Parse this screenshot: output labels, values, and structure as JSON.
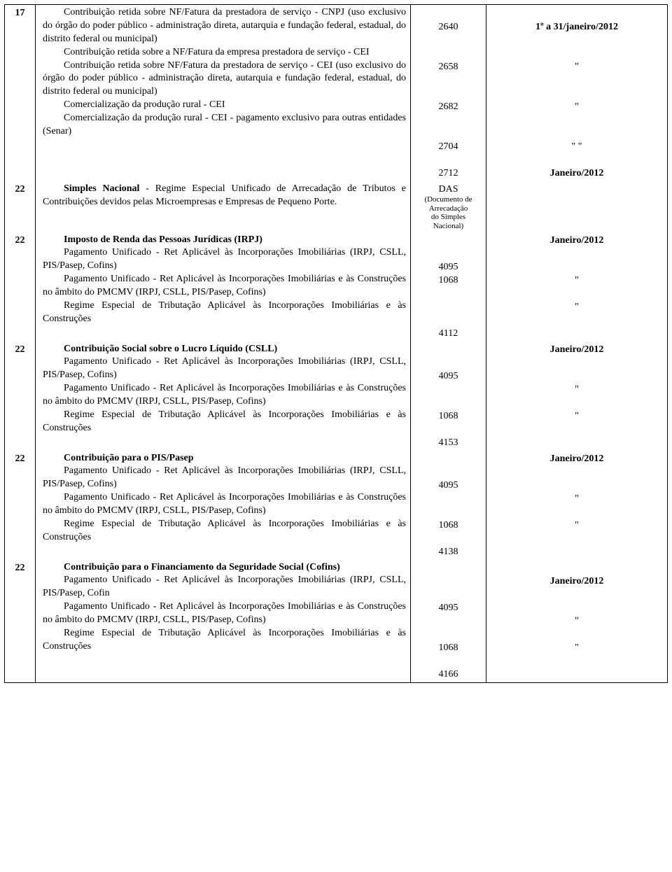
{
  "rows": [
    {
      "day": "17",
      "desc_lines": [
        {
          "text": "Contribuição retida sobre NF/Fatura da prestadora de serviço - CNPJ (uso exclusivo do órgão do poder público - administração direta, autarquia e fundação federal, estadual, do distrito federal ou municipal)",
          "class": "indent"
        },
        {
          "text": "Contribuição retida sobre a NF/Fatura da empresa prestadora de serviço - CEI",
          "class": "indent"
        },
        {
          "text": "Contribuição retida sobre NF/Fatura da prestadora de serviço - CEI (uso exclusivo do órgão do poder público - administração direta, autarquia e fundação federal, estadual, do distrito federal ou municipal)",
          "class": "indent"
        },
        {
          "text": "Comercialização da produção rural - CEI",
          "class": "indent"
        },
        {
          "text": "Comercialização da produção rural - CEI - pagamento exclusivo para outras entidades (Senar)",
          "class": "indent"
        }
      ],
      "codes": [
        {
          "gap": 20
        },
        {
          "text": "2640"
        },
        {
          "gap": 38
        },
        {
          "text": "2658"
        },
        {
          "gap": 38
        },
        {
          "text": "2682"
        },
        {
          "gap": 38
        },
        {
          "text": "2704"
        },
        {
          "gap": 19
        },
        {
          "text": "2712"
        }
      ],
      "periods": [
        {
          "gap": 20
        },
        {
          "text": "1º a 31/janeiro/2012",
          "bold": true
        },
        {
          "gap": 38
        },
        {
          "text": "\""
        },
        {
          "gap": 38
        },
        {
          "text": "\""
        },
        {
          "gap": 38
        },
        {
          "text": "\" \""
        },
        {
          "gap": 19
        },
        {
          "text": "Janeiro/2012",
          "bold": true
        }
      ]
    },
    {
      "day": "22",
      "desc_lines": [
        {
          "html": "<span class='bold'>Simples Nacional</span> - Regime Especial Unificado de Arrecadação de Tributos e Contribuições devidos pelas Microempresas e Empresas de Pequeno Porte.",
          "class": "indent"
        }
      ],
      "code_special": [
        "DAS",
        "(Documento de",
        "Arrecadação",
        "do Simples",
        "Nacional)"
      ],
      "periods": []
    },
    {
      "day": "22",
      "desc_lines": [
        {
          "html": "<span class='bold'>Imposto de Renda das Pessoas Jurídicas (IRPJ)</span>",
          "class": "indent"
        },
        {
          "text": "Pagamento Unificado - Ret Aplicável às Incorporações Imobiliárias (IRPJ, CSLL, PIS/Pasep, Cofins)",
          "class": "indent"
        },
        {
          "text": "Pagamento Unificado - Ret Aplicável às Incorporações Imobiliárias e às Construções no âmbito do PMCMV (IRPJ, CSLL, PIS/Pasep, Cofins)",
          "class": "indent"
        },
        {
          "text": "Regime Especial de Tributação Aplicável às Incorporações Imobiliárias e às Construções",
          "class": "indent"
        }
      ],
      "codes": [
        {
          "gap": 38
        },
        {
          "text": "4095"
        },
        {
          "text": "1068"
        },
        {
          "gap": 57
        },
        {
          "text": "4112"
        }
      ],
      "periods": [
        {
          "text": "Janeiro/2012",
          "bold": true
        },
        {
          "gap": 38
        },
        {
          "text": "\""
        },
        {
          "gap": 19
        },
        {
          "text": "\""
        }
      ]
    },
    {
      "day": "22",
      "desc_lines": [
        {
          "html": "<span class='bold'>Contribuição Social sobre o Lucro Líquido (CSLL)</span>",
          "class": "indent"
        },
        {
          "text": "Pagamento Unificado - Ret Aplicável às Incorporações Imobiliárias (IRPJ, CSLL, PIS/Pasep, Cofins)",
          "class": "indent"
        },
        {
          "text": "Pagamento Unificado - Ret Aplicável às Incorporações Imobiliárias e às Construções no âmbito do PMCMV (IRPJ, CSLL, PIS/Pasep, Cofins)",
          "class": "indent"
        },
        {
          "text": "Regime Especial de Tributação Aplicável às Incorporações Imobiliárias e às Construções",
          "class": "indent"
        }
      ],
      "codes": [
        {
          "gap": 38
        },
        {
          "text": "4095"
        },
        {
          "gap": 38
        },
        {
          "text": "1068"
        },
        {
          "gap": 19
        },
        {
          "text": "4153"
        }
      ],
      "periods": [
        {
          "text": "Janeiro/2012",
          "bold": true
        },
        {
          "gap": 38
        },
        {
          "text": "\""
        },
        {
          "gap": 19
        },
        {
          "text": "\""
        }
      ]
    },
    {
      "day": "22",
      "desc_lines": [
        {
          "html": "<span class='bold'>Contribuição para o PIS/Pasep</span>",
          "class": "indent"
        },
        {
          "text": "Pagamento Unificado - Ret Aplicável às Incorporações Imobiliárias (IRPJ, CSLL, PIS/Pasep, Cofins)",
          "class": "indent"
        },
        {
          "text": "Pagamento Unificado - Ret Aplicável às Incorporações Imobiliárias e às Construções no âmbito do PMCMV (IRPJ, CSLL, PIS/Pasep, Cofins)",
          "class": "indent"
        },
        {
          "text": "Regime Especial de Tributação Aplicável às Incorporações Imobiliárias e às Construções",
          "class": "indent"
        }
      ],
      "codes": [
        {
          "gap": 38
        },
        {
          "text": "4095"
        },
        {
          "gap": 38
        },
        {
          "text": "1068"
        },
        {
          "gap": 19
        },
        {
          "text": "4138"
        }
      ],
      "periods": [
        {
          "text": "Janeiro/2012",
          "bold": true
        },
        {
          "gap": 38
        },
        {
          "text": "\""
        },
        {
          "gap": 19
        },
        {
          "text": "\""
        }
      ]
    },
    {
      "day": "22",
      "desc_lines": [
        {
          "html": "<span class='bold'>Contribuição para o Financiamento da Seguridade Social (Cofins)</span>",
          "class": "indent"
        },
        {
          "text": "Pagamento Unificado - Ret Aplicável às Incorporações Imobiliárias (IRPJ, CSLL, PIS/Pasep, Cofin",
          "class": "indent"
        },
        {
          "text": "Pagamento Unificado - Ret Aplicável às Incorporações Imobiliárias e às Construções no âmbito do PMCMV (IRPJ, CSLL, PIS/Pasep, Cofins)",
          "class": "indent"
        },
        {
          "text": "Regime Especial de Tributação Aplicável às Incorporações Imobiliárias e às Construções",
          "class": "indent"
        }
      ],
      "codes": [
        {
          "gap": 57
        },
        {
          "text": "4095"
        },
        {
          "gap": 38
        },
        {
          "text": "1068"
        },
        {
          "gap": 19
        },
        {
          "text": "4166"
        }
      ],
      "periods": [
        {
          "gap": 19
        },
        {
          "text": "Janeiro/2012",
          "bold": true
        },
        {
          "gap": 38
        },
        {
          "text": "\""
        },
        {
          "gap": 19
        },
        {
          "text": "\""
        }
      ]
    }
  ]
}
